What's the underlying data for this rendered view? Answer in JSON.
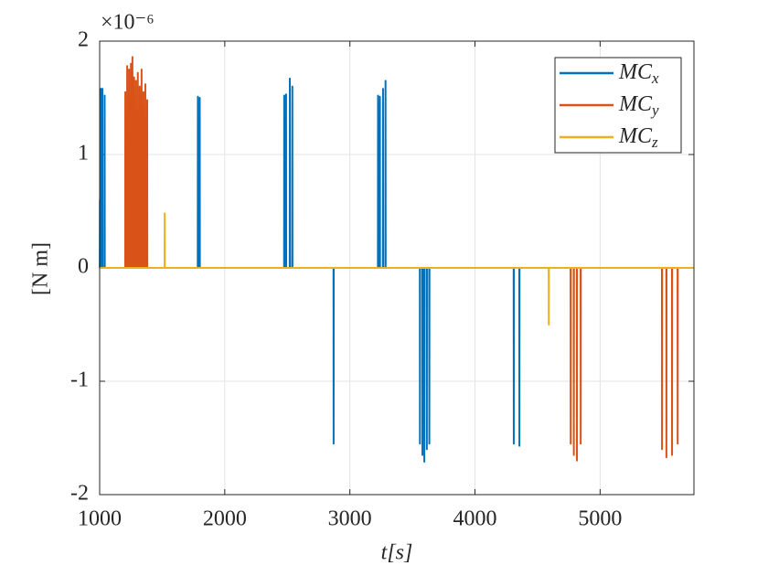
{
  "chart_data": {
    "type": "line",
    "y_scale_label": "×10⁻⁶",
    "xlabel": "t[s]",
    "ylabel": "[N m]",
    "xlim": [
      1000,
      5750
    ],
    "xticks": [
      1000,
      2000,
      3000,
      4000,
      5000
    ],
    "ylim": [
      -2,
      2
    ],
    "yticks": [
      -2,
      -1,
      0,
      1,
      2
    ],
    "grid": true,
    "legend": "upper right",
    "series": [
      {
        "name": "MCx",
        "color": "#0072BD",
        "x": [
          1000,
          1001,
          1002,
          1003,
          1009,
          1010,
          1011,
          1021,
          1022,
          1023,
          1039,
          1040,
          1041,
          1784,
          1785,
          1786,
          1799,
          1800,
          1801,
          2474,
          2475,
          2476,
          2489,
          2490,
          2491,
          2519,
          2520,
          2521,
          2539,
          2540,
          2541,
          2869,
          2870,
          2871,
          3224,
          3225,
          3226,
          3239,
          3240,
          3241,
          3264,
          3265,
          3266,
          3284,
          3285,
          3286,
          3559,
          3560,
          3561,
          3579,
          3580,
          3581,
          3594,
          3595,
          3596,
          3614,
          3615,
          3616,
          3634,
          3635,
          3636,
          4309,
          4310,
          4311,
          4354,
          4355,
          4356,
          5750
        ],
        "values": [
          0,
          0,
          0.6,
          0,
          0,
          1.58,
          0,
          0,
          1.58,
          0,
          0,
          1.52,
          0,
          0,
          1.51,
          0,
          0,
          1.5,
          0,
          0,
          1.52,
          0,
          0,
          1.53,
          0,
          0,
          1.67,
          0,
          0,
          1.6,
          0,
          0,
          -1.55,
          0,
          0,
          1.52,
          0,
          0,
          1.51,
          0,
          0,
          1.58,
          0,
          0,
          1.65,
          0,
          0,
          -1.55,
          0,
          0,
          -1.65,
          0,
          0,
          -1.71,
          0,
          0,
          -1.6,
          0,
          0,
          -1.55,
          0,
          0,
          -1.55,
          0,
          0,
          -1.57,
          0,
          0
        ]
      },
      {
        "name": "MCy",
        "color": "#D95319",
        "x": [
          1000,
          1204,
          1205,
          1206,
          1219,
          1220,
          1221,
          1234,
          1235,
          1236,
          1249,
          1250,
          1251,
          1261,
          1262,
          1263,
          1274,
          1275,
          1276,
          1289,
          1290,
          1291,
          1304,
          1305,
          1306,
          1319,
          1320,
          1321,
          1334,
          1335,
          1336,
          1349,
          1350,
          1351,
          1364,
          1365,
          1366,
          1379,
          1380,
          1381,
          4764,
          4765,
          4766,
          4789,
          4790,
          4791,
          4814,
          4815,
          4816,
          4844,
          4845,
          4846,
          5494,
          5495,
          5496,
          5529,
          5530,
          5531,
          5574,
          5575,
          5576,
          5619,
          5620,
          5621,
          5750
        ],
        "values": [
          0,
          0,
          1.55,
          0,
          0,
          1.78,
          0,
          0,
          1.75,
          0,
          0,
          1.8,
          0,
          0,
          1.86,
          0,
          0,
          1.68,
          0,
          0,
          1.65,
          0,
          0,
          1.72,
          0,
          0,
          1.6,
          0,
          0,
          1.75,
          0,
          0,
          1.55,
          0,
          0,
          1.62,
          0,
          0,
          1.48,
          0,
          0,
          -1.55,
          0,
          0,
          -1.65,
          0,
          0,
          -1.7,
          0,
          0,
          -1.55,
          0,
          0,
          -1.6,
          0,
          0,
          -1.67,
          0,
          0,
          -1.65,
          0,
          0,
          -1.55,
          0,
          0
        ]
      },
      {
        "name": "MCz",
        "color": "#EDB120",
        "x": [
          1000,
          1519,
          1520,
          1521,
          4589,
          4590,
          4591,
          5750
        ],
        "values": [
          0,
          0,
          0.48,
          0,
          0,
          -0.5,
          0,
          0
        ]
      }
    ]
  }
}
